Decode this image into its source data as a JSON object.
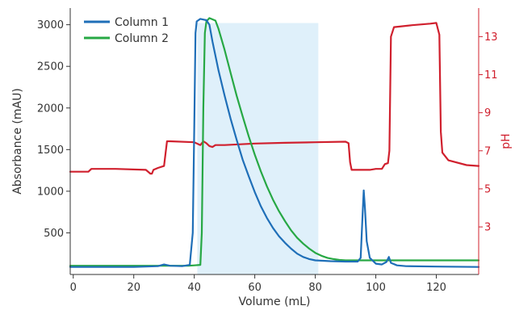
{
  "colors": {
    "column1": "#1f6fb8",
    "column2": "#27a844",
    "ph": "#d0202e",
    "shade": "#dff0fa",
    "axis": "#333333"
  },
  "chart_data": {
    "type": "line",
    "x_axis": {
      "label": "Volume (mL)",
      "range": [
        -1,
        134
      ],
      "ticks": [
        0,
        20,
        40,
        60,
        80,
        100,
        120
      ]
    },
    "y_axis_left": {
      "label": "Absorbance (mAU)",
      "range": [
        0,
        3200
      ],
      "ticks": [
        500,
        1000,
        1500,
        2000,
        2500,
        3000
      ]
    },
    "y_axis_right": {
      "label": "pH",
      "range": [
        0.5,
        14.5
      ],
      "ticks": [
        3,
        5,
        7,
        9,
        11,
        13
      ],
      "color": "#d0202e"
    },
    "shaded_region": {
      "x": [
        41,
        81
      ],
      "y": [
        0,
        3020
      ]
    },
    "legend": {
      "position": "top-left"
    },
    "series": [
      {
        "name": "Column 1",
        "axis": "left",
        "color": "#1f6fb8",
        "points": [
          [
            -1,
            90
          ],
          [
            20,
            90
          ],
          [
            28,
            100
          ],
          [
            30,
            120
          ],
          [
            32,
            105
          ],
          [
            36,
            100
          ],
          [
            38.5,
            115
          ],
          [
            39.5,
            500
          ],
          [
            40,
            1800
          ],
          [
            40.4,
            2900
          ],
          [
            40.8,
            3040
          ],
          [
            42,
            3070
          ],
          [
            44,
            3055
          ],
          [
            45,
            3000
          ],
          [
            46,
            2800
          ],
          [
            48,
            2450
          ],
          [
            50,
            2150
          ],
          [
            52,
            1870
          ],
          [
            54,
            1620
          ],
          [
            56,
            1380
          ],
          [
            58,
            1180
          ],
          [
            60,
            990
          ],
          [
            62,
            820
          ],
          [
            64,
            680
          ],
          [
            66,
            560
          ],
          [
            68,
            460
          ],
          [
            70,
            380
          ],
          [
            72,
            310
          ],
          [
            74,
            250
          ],
          [
            76,
            210
          ],
          [
            78,
            185
          ],
          [
            80,
            170
          ],
          [
            85,
            160
          ],
          [
            90,
            155
          ],
          [
            94,
            155
          ],
          [
            95,
            200
          ],
          [
            95.6,
            700
          ],
          [
            96,
            1010
          ],
          [
            96.4,
            800
          ],
          [
            97,
            400
          ],
          [
            98,
            200
          ],
          [
            100,
            130
          ],
          [
            102,
            120
          ],
          [
            103.5,
            150
          ],
          [
            104.3,
            210
          ],
          [
            105,
            140
          ],
          [
            107,
            110
          ],
          [
            110,
            100
          ],
          [
            120,
            95
          ],
          [
            134,
            90
          ]
        ]
      },
      {
        "name": "Column 2",
        "axis": "left",
        "color": "#27a844",
        "points": [
          [
            -1,
            105
          ],
          [
            38,
            105
          ],
          [
            40,
            110
          ],
          [
            42,
            115
          ],
          [
            42.5,
            500
          ],
          [
            43,
            2000
          ],
          [
            43.5,
            2900
          ],
          [
            44,
            3040
          ],
          [
            45,
            3080
          ],
          [
            47,
            3050
          ],
          [
            48,
            2950
          ],
          [
            50,
            2700
          ],
          [
            52,
            2420
          ],
          [
            54,
            2150
          ],
          [
            56,
            1900
          ],
          [
            58,
            1660
          ],
          [
            60,
            1440
          ],
          [
            62,
            1240
          ],
          [
            64,
            1060
          ],
          [
            66,
            900
          ],
          [
            68,
            760
          ],
          [
            70,
            640
          ],
          [
            72,
            530
          ],
          [
            74,
            440
          ],
          [
            76,
            370
          ],
          [
            78,
            310
          ],
          [
            80,
            260
          ],
          [
            82,
            225
          ],
          [
            84,
            200
          ],
          [
            86,
            185
          ],
          [
            88,
            175
          ],
          [
            90,
            170
          ],
          [
            100,
            170
          ],
          [
            134,
            170
          ]
        ]
      },
      {
        "name": "pH",
        "axis": "right",
        "color": "#d0202e",
        "points": [
          [
            -1,
            5.9
          ],
          [
            5,
            5.9
          ],
          [
            6,
            6.05
          ],
          [
            14,
            6.05
          ],
          [
            24,
            6.0
          ],
          [
            25.5,
            5.8
          ],
          [
            26,
            5.8
          ],
          [
            26.5,
            6.0
          ],
          [
            28,
            6.1
          ],
          [
            30,
            6.2
          ],
          [
            31,
            7.5
          ],
          [
            32,
            7.5
          ],
          [
            40,
            7.45
          ],
          [
            42,
            7.3
          ],
          [
            43,
            7.5
          ],
          [
            44,
            7.4
          ],
          [
            45,
            7.25
          ],
          [
            46,
            7.2
          ],
          [
            47,
            7.3
          ],
          [
            50,
            7.3
          ],
          [
            60,
            7.38
          ],
          [
            70,
            7.42
          ],
          [
            80,
            7.45
          ],
          [
            90,
            7.48
          ],
          [
            91,
            7.4
          ],
          [
            91.5,
            6.4
          ],
          [
            92,
            6.0
          ],
          [
            93,
            6.0
          ],
          [
            98,
            6.0
          ],
          [
            100,
            6.05
          ],
          [
            102,
            6.05
          ],
          [
            103,
            6.3
          ],
          [
            104,
            6.35
          ],
          [
            104.5,
            7.0
          ],
          [
            105,
            13.0
          ],
          [
            106,
            13.5
          ],
          [
            112,
            13.6
          ],
          [
            118,
            13.68
          ],
          [
            120,
            13.72
          ],
          [
            121,
            13.1
          ],
          [
            121.5,
            8.0
          ],
          [
            122,
            6.9
          ],
          [
            124,
            6.5
          ],
          [
            130,
            6.25
          ],
          [
            134,
            6.2
          ]
        ]
      }
    ]
  }
}
